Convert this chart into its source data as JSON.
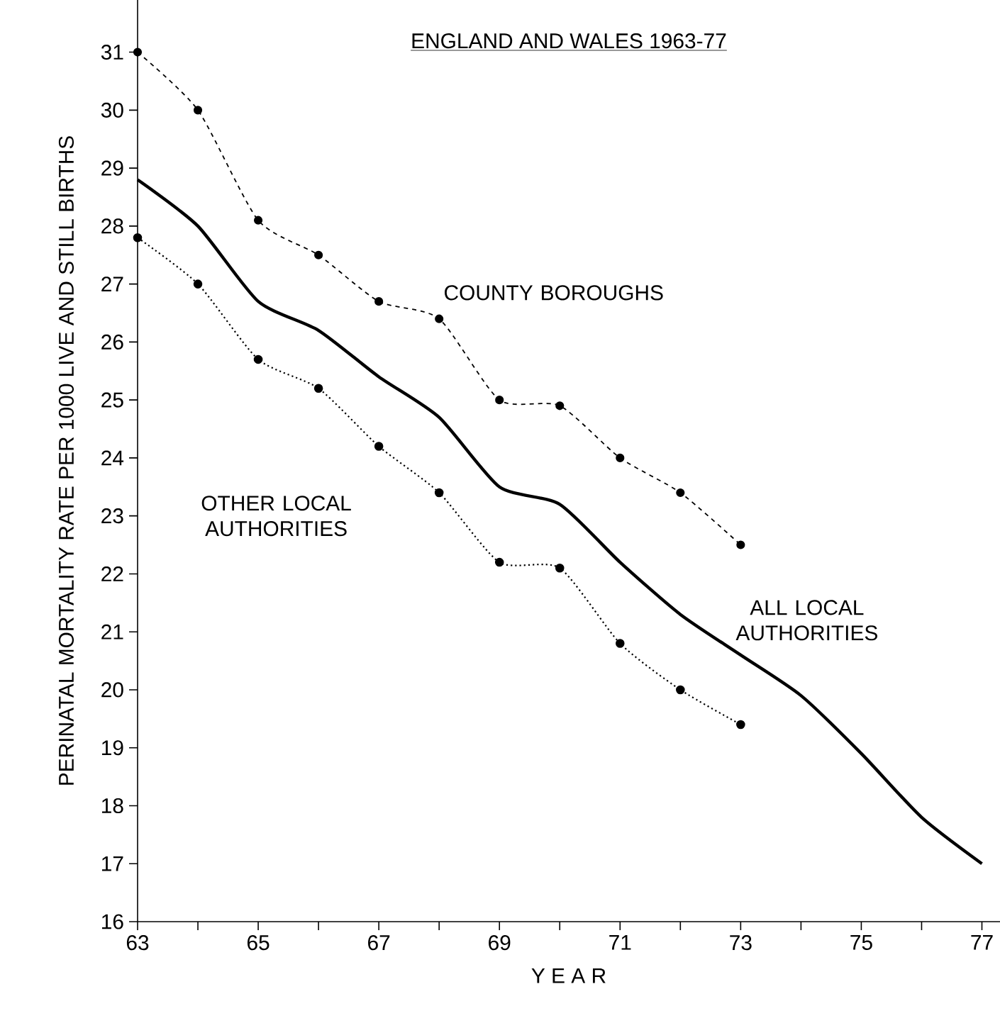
{
  "chart_data": {
    "type": "line",
    "title": "ENGLAND AND WALES 1963-77",
    "xlabel": "Y E A R",
    "ylabel": "PERINATAL MORTALITY RATE PER 1000 LIVE AND STILL BIRTHS",
    "series": [
      {
        "name": "COUNTY BOROUGHS",
        "color": "#000000",
        "line_style": "dashed",
        "marker": "circle",
        "x": [
          63,
          64,
          65,
          66,
          67,
          68,
          69,
          70,
          71,
          72,
          73
        ],
        "values": [
          31.0,
          30.0,
          28.1,
          27.5,
          26.7,
          26.4,
          25.0,
          24.9,
          24.0,
          23.4,
          22.5
        ]
      },
      {
        "name": "OTHER LOCAL AUTHORITIES",
        "color": "#000000",
        "line_style": "dotted",
        "marker": "circle",
        "x": [
          63,
          64,
          65,
          66,
          67,
          68,
          69,
          70,
          71,
          72,
          73
        ],
        "values": [
          27.8,
          27.0,
          25.7,
          25.2,
          24.2,
          23.4,
          22.2,
          22.1,
          20.8,
          20.0,
          19.4
        ]
      },
      {
        "name": "ALL LOCAL AUTHORITIES",
        "color": "#000000",
        "line_style": "solid",
        "marker": "none",
        "x": [
          63,
          64,
          65,
          66,
          67,
          68,
          69,
          70,
          71,
          72,
          73,
          74,
          75,
          76,
          77
        ],
        "values": [
          28.8,
          28.0,
          26.7,
          26.2,
          25.4,
          24.7,
          23.5,
          23.2,
          22.2,
          21.3,
          20.6,
          19.9,
          18.9,
          17.8,
          17.0
        ]
      }
    ],
    "xlim": [
      63,
      77.3
    ],
    "xticks": [
      63,
      {
        "value": 64,
        "label": null
      },
      65,
      {
        "value": 66,
        "label": null
      },
      67,
      {
        "value": 68,
        "label": null
      },
      69,
      {
        "value": 70,
        "label": null
      },
      71,
      {
        "value": 72,
        "label": null
      },
      73,
      {
        "value": 74,
        "label": null
      },
      75,
      {
        "value": 76,
        "label": null
      },
      77
    ],
    "ylim": [
      16,
      31.9
    ],
    "yticks": [
      16,
      17,
      18,
      19,
      20,
      21,
      22,
      23,
      24,
      25,
      26,
      27,
      28,
      29,
      30,
      31
    ],
    "grid": false
  }
}
